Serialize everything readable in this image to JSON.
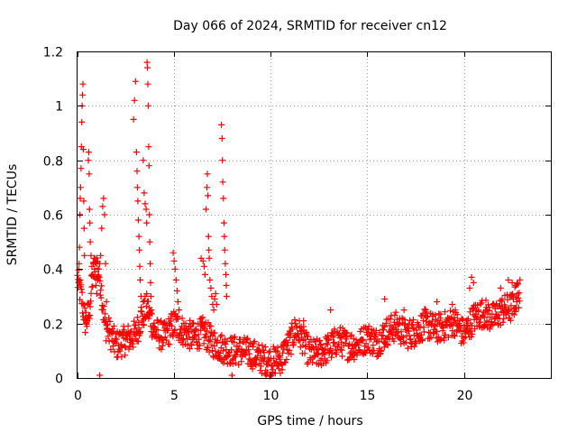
{
  "chart_data": {
    "type": "scatter",
    "title": "Day 066 of 2024, SRMTID for receiver cn12",
    "xlabel": "GPS time / hours",
    "ylabel": "SRMTID / TECUs",
    "xlim": [
      0,
      24.5
    ],
    "ylim": [
      0,
      1.2
    ],
    "xticks": [
      0,
      5,
      10,
      15,
      20
    ],
    "xtick_labels": [
      "0",
      "5",
      "10",
      "15",
      "20"
    ],
    "yticks": [
      0,
      0.2,
      0.4,
      0.6,
      0.8,
      1.0,
      1.2
    ],
    "ytick_labels": [
      "0",
      "0.2",
      "0.4",
      "0.6",
      "0.8",
      "1",
      "1.2"
    ],
    "grid": true,
    "marker": "+",
    "color": "#ff0000",
    "series": [
      {
        "name": "SRMTID",
        "baseline": [
          [
            0.0,
            0.36
          ],
          [
            0.2,
            0.3
          ],
          [
            0.4,
            0.21
          ],
          [
            0.6,
            0.24
          ],
          [
            0.8,
            0.38
          ],
          [
            1.0,
            0.42
          ],
          [
            1.2,
            0.35
          ],
          [
            1.4,
            0.2
          ],
          [
            1.7,
            0.16
          ],
          [
            2.0,
            0.12
          ],
          [
            2.5,
            0.14
          ],
          [
            3.0,
            0.16
          ],
          [
            3.3,
            0.22
          ],
          [
            3.6,
            0.26
          ],
          [
            4.0,
            0.17
          ],
          [
            4.5,
            0.15
          ],
          [
            5.0,
            0.2
          ],
          [
            5.5,
            0.17
          ],
          [
            6.0,
            0.15
          ],
          [
            6.5,
            0.17
          ],
          [
            7.0,
            0.13
          ],
          [
            7.5,
            0.11
          ],
          [
            8.0,
            0.1
          ],
          [
            8.5,
            0.1
          ],
          [
            9.0,
            0.09
          ],
          [
            9.5,
            0.07
          ],
          [
            10.0,
            0.06
          ],
          [
            10.5,
            0.07
          ],
          [
            11.0,
            0.13
          ],
          [
            11.3,
            0.18
          ],
          [
            11.6,
            0.15
          ],
          [
            12.0,
            0.09
          ],
          [
            12.5,
            0.09
          ],
          [
            13.0,
            0.11
          ],
          [
            13.5,
            0.14
          ],
          [
            14.0,
            0.12
          ],
          [
            14.5,
            0.12
          ],
          [
            15.0,
            0.15
          ],
          [
            15.5,
            0.13
          ],
          [
            16.0,
            0.17
          ],
          [
            16.5,
            0.19
          ],
          [
            17.0,
            0.16
          ],
          [
            17.5,
            0.17
          ],
          [
            18.0,
            0.2
          ],
          [
            18.5,
            0.18
          ],
          [
            19.0,
            0.19
          ],
          [
            19.5,
            0.21
          ],
          [
            20.0,
            0.16
          ],
          [
            20.5,
            0.22
          ],
          [
            21.0,
            0.24
          ],
          [
            21.5,
            0.22
          ],
          [
            22.0,
            0.25
          ],
          [
            22.5,
            0.26
          ],
          [
            22.8,
            0.31
          ]
        ],
        "extra_points": [
          [
            0.05,
            0.35
          ],
          [
            0.08,
            0.42
          ],
          [
            0.1,
            0.48
          ],
          [
            0.12,
            0.6
          ],
          [
            0.14,
            0.66
          ],
          [
            0.16,
            0.7
          ],
          [
            0.18,
            0.77
          ],
          [
            0.2,
            0.85
          ],
          [
            0.22,
            0.94
          ],
          [
            0.24,
            1.0
          ],
          [
            0.26,
            1.04
          ],
          [
            0.28,
            1.08
          ],
          [
            0.3,
            0.84
          ],
          [
            0.32,
            0.65
          ],
          [
            0.34,
            0.55
          ],
          [
            0.36,
            0.45
          ],
          [
            0.4,
            0.22
          ],
          [
            0.44,
            0.2
          ],
          [
            0.48,
            0.19
          ],
          [
            0.52,
            0.22
          ],
          [
            0.56,
            0.8
          ],
          [
            0.58,
            0.83
          ],
          [
            0.6,
            0.75
          ],
          [
            0.62,
            0.62
          ],
          [
            0.64,
            0.57
          ],
          [
            0.66,
            0.5
          ],
          [
            0.7,
            0.45
          ],
          [
            0.74,
            0.41
          ],
          [
            0.78,
            0.38
          ],
          [
            0.82,
            0.42
          ],
          [
            0.86,
            0.44
          ],
          [
            0.9,
            0.39
          ],
          [
            0.95,
            0.34
          ],
          [
            1.0,
            0.31
          ],
          [
            1.05,
            0.36
          ],
          [
            1.1,
            0.4
          ],
          [
            1.15,
            0.01
          ],
          [
            1.2,
            0.45
          ],
          [
            1.25,
            0.55
          ],
          [
            1.3,
            0.63
          ],
          [
            1.35,
            0.66
          ],
          [
            1.4,
            0.6
          ],
          [
            1.45,
            0.42
          ],
          [
            1.5,
            0.28
          ],
          [
            2.9,
            0.95
          ],
          [
            2.95,
            1.02
          ],
          [
            3.0,
            1.09
          ],
          [
            3.05,
            0.83
          ],
          [
            3.08,
            0.76
          ],
          [
            3.1,
            0.7
          ],
          [
            3.12,
            0.65
          ],
          [
            3.15,
            0.58
          ],
          [
            3.18,
            0.52
          ],
          [
            3.2,
            0.47
          ],
          [
            3.22,
            0.41
          ],
          [
            3.25,
            0.36
          ],
          [
            3.28,
            0.3
          ],
          [
            3.3,
            0.26
          ],
          [
            3.4,
            0.8
          ],
          [
            3.45,
            0.68
          ],
          [
            3.5,
            0.64
          ],
          [
            3.55,
            0.62
          ],
          [
            3.58,
            0.57
          ],
          [
            3.6,
            1.16
          ],
          [
            3.62,
            1.14
          ],
          [
            3.64,
            1.08
          ],
          [
            3.66,
            1.0
          ],
          [
            3.68,
            0.85
          ],
          [
            3.7,
            0.78
          ],
          [
            3.72,
            0.6
          ],
          [
            3.74,
            0.5
          ],
          [
            3.76,
            0.42
          ],
          [
            3.78,
            0.35
          ],
          [
            3.8,
            0.3
          ],
          [
            3.82,
            0.25
          ],
          [
            4.95,
            0.46
          ],
          [
            5.0,
            0.43
          ],
          [
            5.05,
            0.4
          ],
          [
            5.1,
            0.36
          ],
          [
            5.15,
            0.32
          ],
          [
            5.2,
            0.28
          ],
          [
            5.25,
            0.25
          ],
          [
            6.4,
            0.44
          ],
          [
            6.5,
            0.43
          ],
          [
            6.55,
            0.41
          ],
          [
            6.6,
            0.38
          ],
          [
            6.65,
            0.62
          ],
          [
            6.7,
            0.7
          ],
          [
            6.72,
            0.75
          ],
          [
            6.75,
            0.67
          ],
          [
            6.78,
            0.52
          ],
          [
            6.8,
            0.47
          ],
          [
            6.82,
            0.44
          ],
          [
            6.85,
            0.36
          ],
          [
            6.9,
            0.33
          ],
          [
            6.95,
            0.3
          ],
          [
            7.0,
            0.27
          ],
          [
            7.05,
            0.25
          ],
          [
            7.1,
            0.29
          ],
          [
            7.15,
            0.31
          ],
          [
            7.2,
            0.27
          ],
          [
            7.45,
            0.93
          ],
          [
            7.48,
            0.88
          ],
          [
            7.5,
            0.8
          ],
          [
            7.52,
            0.72
          ],
          [
            7.55,
            0.66
          ],
          [
            7.58,
            0.57
          ],
          [
            7.6,
            0.52
          ],
          [
            7.62,
            0.47
          ],
          [
            7.65,
            0.42
          ],
          [
            7.68,
            0.38
          ],
          [
            7.7,
            0.34
          ],
          [
            7.72,
            0.3
          ],
          [
            8.0,
            0.01
          ],
          [
            20.3,
            0.33
          ],
          [
            20.4,
            0.37
          ],
          [
            20.5,
            0.35
          ],
          [
            22.3,
            0.36
          ],
          [
            22.5,
            0.35
          ],
          [
            22.7,
            0.34
          ],
          [
            15.9,
            0.29
          ],
          [
            18.6,
            0.28
          ],
          [
            21.9,
            0.33
          ],
          [
            13.1,
            0.25
          ],
          [
            10.1,
            0.03
          ],
          [
            10.6,
            0.03
          ],
          [
            11.7,
            0.21
          ],
          [
            16.9,
            0.25
          ],
          [
            19.4,
            0.27
          ]
        ],
        "scatter_amplitude": 0.055,
        "sample_interval_hours": 0.02,
        "time_range": [
          0.0,
          22.9
        ]
      }
    ]
  }
}
